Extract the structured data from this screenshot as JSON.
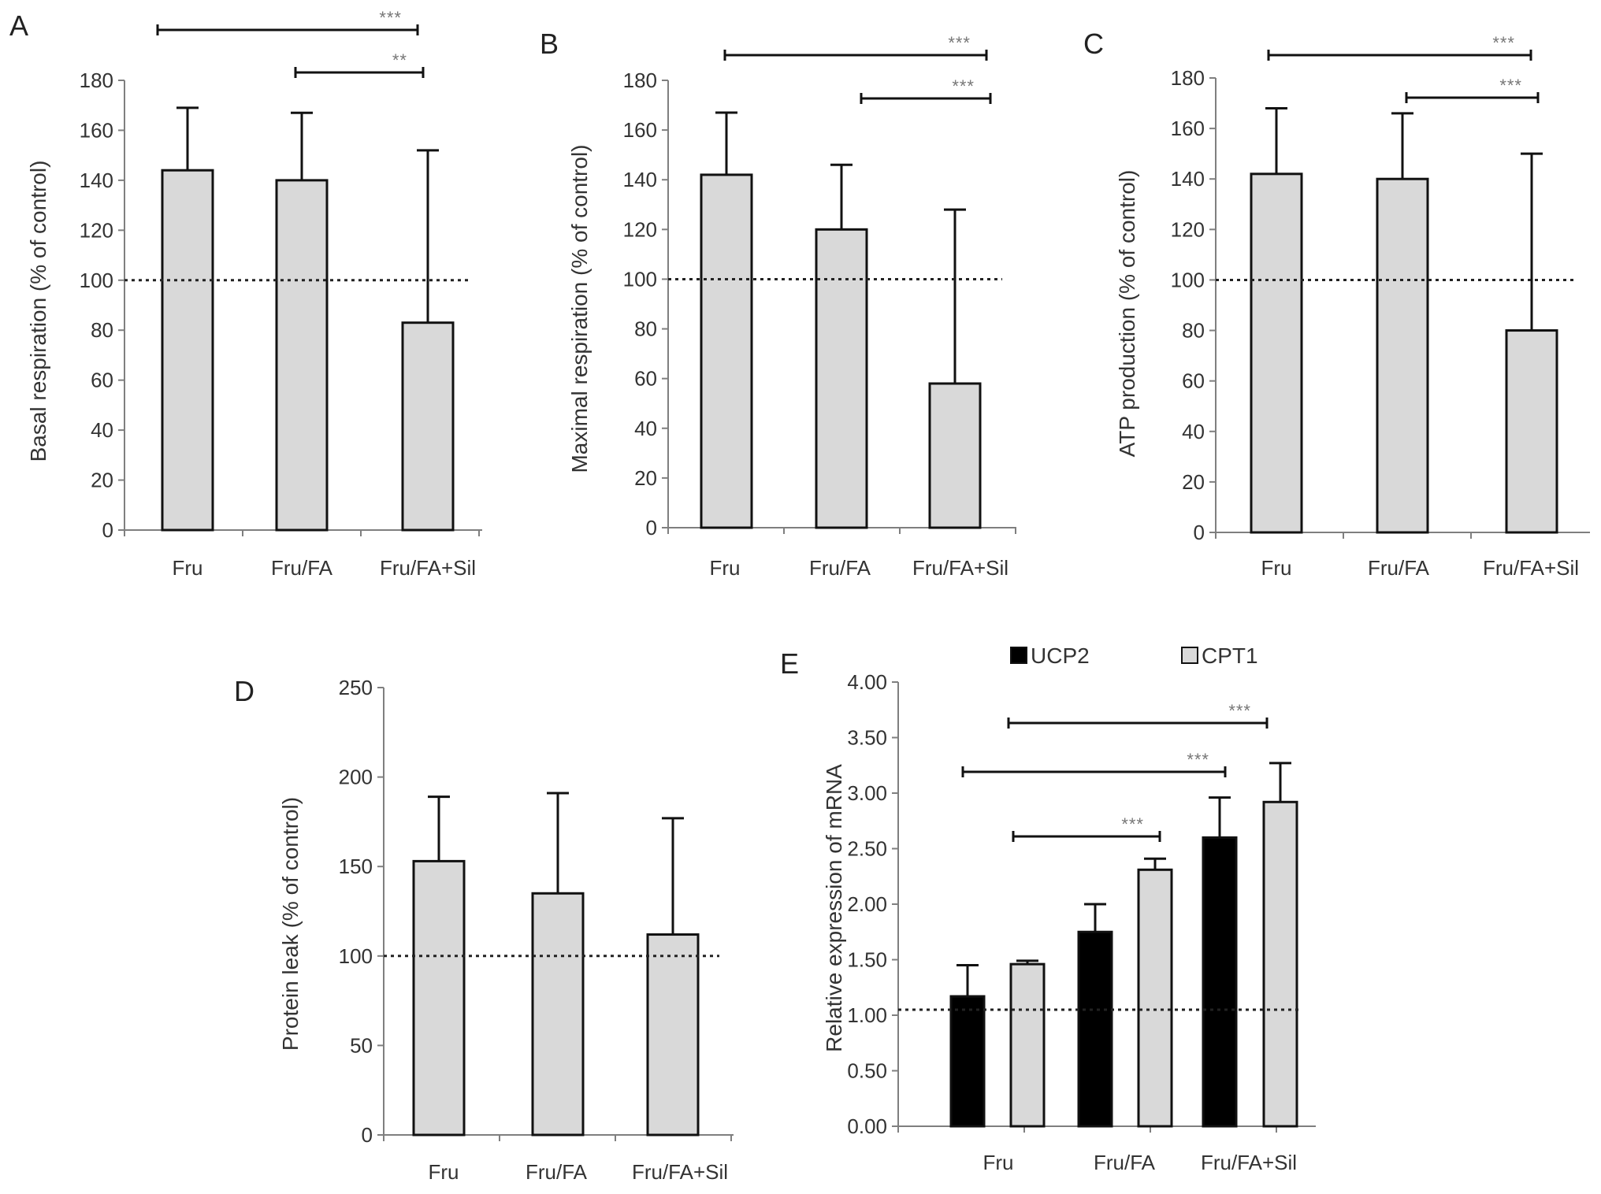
{
  "colors": {
    "bar_fill": "#d9d9d9",
    "bar_dark": "#000000",
    "stroke": "#111111",
    "axis": "#7f7f7f",
    "text": "#333333",
    "sig": "#777777"
  },
  "chart_data": [
    {
      "id": "A",
      "type": "bar",
      "panel_label": "A",
      "categories": [
        "Fru",
        "Fru/FA",
        "Fru/FA+Sil"
      ],
      "series": [
        {
          "values": [
            144,
            140,
            83
          ],
          "errors": [
            25,
            27,
            69
          ]
        }
      ],
      "ylabel": "Basal respiration (% of control)",
      "ylim": [
        0,
        180
      ],
      "yticks": [
        0,
        20,
        40,
        60,
        80,
        100,
        120,
        140,
        160,
        180
      ],
      "reference_line": 100,
      "significance": [
        {
          "from": 0,
          "to": 2,
          "label": "***"
        },
        {
          "from": 1,
          "to": 2,
          "label": "**"
        }
      ]
    },
    {
      "id": "B",
      "type": "bar",
      "panel_label": "B",
      "categories": [
        "Fru",
        "Fru/FA",
        "Fru/FA+Sil"
      ],
      "series": [
        {
          "values": [
            142,
            120,
            58
          ],
          "errors": [
            25,
            26,
            70
          ]
        }
      ],
      "ylabel": "Maximal respiration (% of control)",
      "ylim": [
        0,
        180
      ],
      "yticks": [
        0,
        20,
        40,
        60,
        80,
        100,
        120,
        140,
        160,
        180
      ],
      "reference_line": 100,
      "significance": [
        {
          "from": 0,
          "to": 2,
          "label": "***"
        },
        {
          "from": 1,
          "to": 2,
          "label": "***"
        }
      ]
    },
    {
      "id": "C",
      "type": "bar",
      "panel_label": "C",
      "categories": [
        "Fru",
        "Fru/FA",
        "Fru/FA+Sil"
      ],
      "series": [
        {
          "values": [
            142,
            140,
            80
          ],
          "errors": [
            26,
            26,
            70
          ]
        }
      ],
      "ylabel": "ATP production (% of control)",
      "ylim": [
        0,
        180
      ],
      "yticks": [
        0,
        20,
        40,
        60,
        80,
        100,
        120,
        140,
        160,
        180
      ],
      "reference_line": 100,
      "significance": [
        {
          "from": 0,
          "to": 2,
          "label": "***"
        },
        {
          "from": 1,
          "to": 2,
          "label": "***"
        }
      ]
    },
    {
      "id": "D",
      "type": "bar",
      "panel_label": "D",
      "categories": [
        "Fru",
        "Fru/FA",
        "Fru/FA+Sil"
      ],
      "series": [
        {
          "values": [
            153,
            135,
            112
          ],
          "errors": [
            36,
            56,
            65
          ]
        }
      ],
      "ylabel": "Protein leak (% of control)",
      "ylim": [
        0,
        250
      ],
      "yticks": [
        0,
        50,
        100,
        150,
        200,
        250
      ],
      "reference_line": 100,
      "significance": []
    },
    {
      "id": "E",
      "type": "bar",
      "panel_label": "E",
      "categories": [
        "Fru",
        "Fru/FA",
        "Fru/FA+Sil"
      ],
      "series": [
        {
          "name": "UCP2",
          "values": [
            1.17,
            1.75,
            2.6
          ],
          "errors": [
            0.28,
            0.25,
            0.36
          ]
        },
        {
          "name": "CPT1",
          "values": [
            1.46,
            2.31,
            2.92
          ],
          "errors": [
            0.03,
            0.1,
            0.35
          ]
        }
      ],
      "ylabel": "Relative expression of mRNA",
      "ylim": [
        0,
        4
      ],
      "yticks": [
        "0.00",
        "0.50",
        "1.00",
        "1.50",
        "2.00",
        "2.50",
        "3.00",
        "3.50",
        "4.00"
      ],
      "reference_line": 1.05,
      "legend_position": "top",
      "significance": [
        {
          "from": [
            0,
            1
          ],
          "to": [
            2,
            1
          ],
          "label": "***"
        },
        {
          "from": [
            0,
            0
          ],
          "to": [
            2,
            0
          ],
          "label": "***"
        },
        {
          "from": [
            0,
            1
          ],
          "to": [
            1,
            1
          ],
          "label": "***"
        }
      ]
    }
  ]
}
